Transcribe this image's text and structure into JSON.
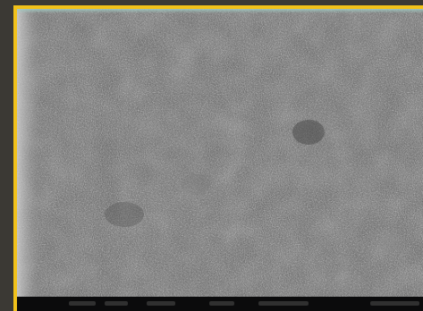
{
  "image": {
    "border_color": "#f2c21a",
    "background_color": "#3b3934",
    "surface_tone": "#5a5a5a",
    "info_bar_color": "#0b0b0c",
    "info_bar_text": "illegible"
  }
}
